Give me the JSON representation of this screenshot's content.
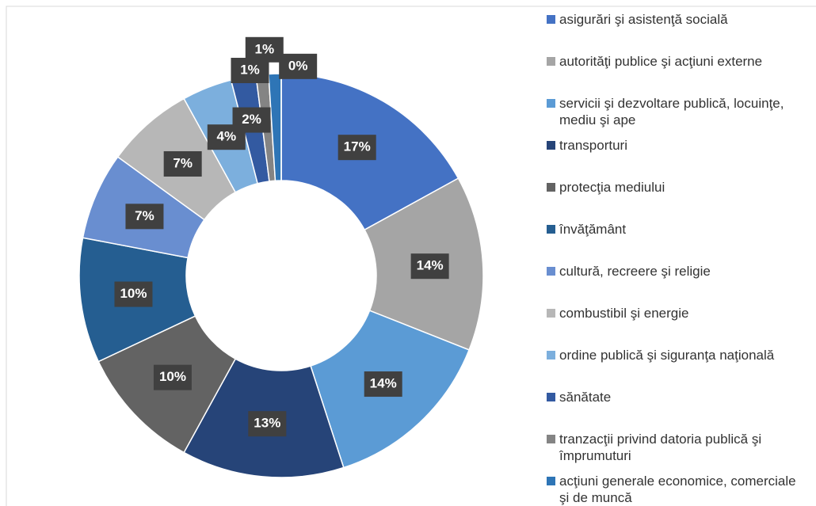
{
  "chart_data": {
    "type": "donut",
    "categories": [
      "asigurări şi asistenţă socială",
      "autorităţi publice şi acţiuni externe",
      "servicii şi dezvoltare publică, locuinţe, mediu şi ape",
      "transporturi",
      "protecţia mediului",
      "învăţământ",
      "cultură, recreere şi religie",
      "combustibil şi energie",
      "ordine publică şi siguranţa naţională",
      "sănătate",
      "tranzacţii privind datoria publică şi împrumuturi",
      "acţiuni generale economice, comerciale şi de muncă",
      null
    ],
    "values": [
      17,
      14,
      14,
      13,
      10,
      10,
      7,
      7,
      4,
      2,
      1,
      1,
      0
    ],
    "value_labels": [
      "17%",
      "14%",
      "14%",
      "13%",
      "10%",
      "10%",
      "7%",
      "7%",
      "4%",
      "2%",
      "1%",
      "1%",
      "0%"
    ],
    "colors": [
      "#4472c4",
      "#a5a5a5",
      "#5b9bd5",
      "#264478",
      "#636363",
      "#255e91",
      "#698ed0",
      "#b7b7b7",
      "#7cafdd",
      "#335aa1",
      "#848484",
      "#2e75b6",
      "#5b9bd5"
    ],
    "legend": "right"
  }
}
